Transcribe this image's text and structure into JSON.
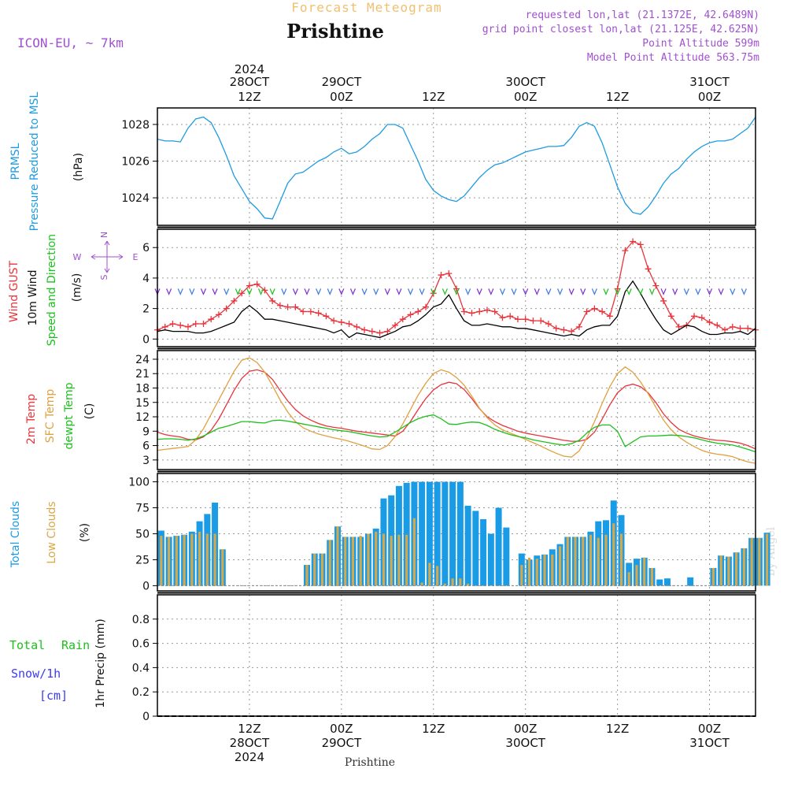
{
  "header": {
    "forecast_title": "Forecast Meteogram",
    "location": "Prishtine",
    "model": "ICON-EU, ~ 7km",
    "requested": "requested lon,lat (21.1372E, 42.6489N)",
    "grid_point": "grid point closest lon,lat (21.125E, 42.625N)",
    "point_altitude": "Point Altitude 599m",
    "model_altitude": "Model Point Altitude 563.75m",
    "footer_location": "Prishtine",
    "credit": "by Angel"
  },
  "colors": {
    "pressure": "#1e9be0",
    "gust": "#e8343c",
    "wind": "#000000",
    "direction": "#1cc01c",
    "temp2m": "#e8343c",
    "sfc_temp": "#e0a040",
    "dewpoint": "#1cc01c",
    "total_clouds": "#1a9be6",
    "low_clouds": "#d8a848",
    "arrows": "#7b2fd6",
    "title_gold": "#f0c070",
    "header_purple": "#a050d0",
    "rain": "#1cc01c",
    "snow": "#3b3bf0"
  },
  "time_axis": {
    "top_labels": [
      {
        "line1": "2024",
        "line2": "28OCT",
        "line3": "12Z",
        "h": 12
      },
      {
        "line1": "",
        "line2": "29OCT",
        "line3": "00Z",
        "h": 24
      },
      {
        "line1": "",
        "line2": "",
        "line3": "12Z",
        "h": 36
      },
      {
        "line1": "",
        "line2": "30OCT",
        "line3": "00Z",
        "h": 48
      },
      {
        "line1": "",
        "line2": "",
        "line3": "12Z",
        "h": 60
      },
      {
        "line1": "",
        "line2": "31OCT",
        "line3": "00Z",
        "h": 72
      }
    ],
    "bottom_labels": [
      {
        "line1": "12Z",
        "line2": "28OCT",
        "line3": "2024",
        "h": 12
      },
      {
        "line1": "00Z",
        "line2": "29OCT",
        "line3": "",
        "h": 24
      },
      {
        "line1": "12Z",
        "line2": "",
        "line3": "",
        "h": 36
      },
      {
        "line1": "00Z",
        "line2": "30OCT",
        "line3": "",
        "h": 48
      },
      {
        "line1": "12Z",
        "line2": "",
        "line3": "",
        "h": 60
      },
      {
        "line1": "00Z",
        "line2": "31OCT",
        "line3": "",
        "h": 72
      }
    ]
  },
  "chart_data": [
    {
      "type": "line",
      "panel": "pressure",
      "ylabel_lines": [
        "PRMSL",
        "Pressure Reduced to MSL"
      ],
      "unit": "(hPa)",
      "yticks": [
        1024,
        1026,
        1028
      ],
      "ylim": [
        1022.5,
        1028.9
      ],
      "x_start_hour": 0,
      "x_step_hours": 1,
      "series": [
        {
          "name": "PRMSL",
          "values": [
            1027.2,
            1027.1,
            1027.1,
            1027.05,
            1027.8,
            1028.3,
            1028.4,
            1028.1,
            1027.3,
            1026.3,
            1025.2,
            1024.5,
            1023.8,
            1023.4,
            1022.9,
            1022.85,
            1023.8,
            1024.8,
            1025.3,
            1025.4,
            1025.7,
            1026.0,
            1026.2,
            1026.5,
            1026.7,
            1026.4,
            1026.5,
            1026.8,
            1027.2,
            1027.5,
            1028.0,
            1028.0,
            1027.8,
            1026.9,
            1026.0,
            1025.0,
            1024.4,
            1024.1,
            1023.9,
            1023.8,
            1024.1,
            1024.6,
            1025.1,
            1025.5,
            1025.8,
            1025.9,
            1026.1,
            1026.3,
            1026.5,
            1026.6,
            1026.7,
            1026.8,
            1026.8,
            1026.85,
            1027.3,
            1027.9,
            1028.1,
            1027.9,
            1027.0,
            1025.8,
            1024.6,
            1023.7,
            1023.2,
            1023.1,
            1023.5,
            1024.1,
            1024.8,
            1025.3,
            1025.6,
            1026.1,
            1026.5,
            1026.8,
            1027.0,
            1027.1,
            1027.1,
            1027.2,
            1027.5,
            1027.8,
            1028.4
          ]
        }
      ]
    },
    {
      "type": "line",
      "panel": "wind",
      "ylabel_lines": [
        "Wind GUST",
        "10m Wind",
        "Speed and Direction"
      ],
      "unit": "(m/s)",
      "compass": {
        "n": "N",
        "s": "S",
        "w": "W",
        "e": "E"
      },
      "yticks": [
        0,
        2,
        4,
        6
      ],
      "ylim": [
        -0.5,
        7.2
      ],
      "x_start_hour": 0,
      "x_step_hours": 1,
      "series": [
        {
          "name": "Wind GUST",
          "values": [
            0.6,
            0.8,
            1.0,
            0.9,
            0.8,
            1.0,
            1.0,
            1.3,
            1.6,
            2.0,
            2.5,
            3.0,
            3.5,
            3.6,
            3.2,
            2.5,
            2.2,
            2.1,
            2.1,
            1.8,
            1.8,
            1.7,
            1.5,
            1.2,
            1.1,
            1.0,
            0.8,
            0.6,
            0.5,
            0.4,
            0.5,
            0.9,
            1.3,
            1.6,
            1.8,
            2.1,
            3.0,
            4.2,
            4.3,
            3.3,
            1.8,
            1.7,
            1.8,
            1.9,
            1.8,
            1.4,
            1.5,
            1.3,
            1.3,
            1.2,
            1.2,
            1.0,
            0.7,
            0.6,
            0.5,
            0.8,
            1.8,
            2.0,
            1.8,
            1.5,
            3.3,
            5.8,
            6.4,
            6.2,
            4.6,
            3.5,
            2.5,
            1.5,
            0.8,
            0.9,
            1.5,
            1.4,
            1.1,
            0.9,
            0.6,
            0.8,
            0.7,
            0.7,
            0.6
          ]
        },
        {
          "name": "10m Wind",
          "values": [
            0.5,
            0.6,
            0.5,
            0.5,
            0.5,
            0.4,
            0.4,
            0.5,
            0.7,
            0.9,
            1.1,
            1.8,
            2.2,
            1.8,
            1.3,
            1.3,
            1.2,
            1.1,
            1.0,
            0.9,
            0.8,
            0.7,
            0.6,
            0.4,
            0.6,
            0.1,
            0.4,
            0.3,
            0.2,
            0.1,
            0.3,
            0.5,
            0.8,
            0.9,
            1.2,
            1.6,
            2.1,
            2.3,
            2.9,
            2.0,
            1.2,
            0.9,
            0.9,
            1.0,
            0.9,
            0.8,
            0.8,
            0.7,
            0.7,
            0.6,
            0.5,
            0.4,
            0.3,
            0.2,
            0.3,
            0.2,
            0.6,
            0.8,
            0.9,
            0.9,
            1.5,
            3.1,
            3.8,
            3.0,
            2.1,
            1.3,
            0.6,
            0.3,
            0.6,
            0.9,
            0.8,
            0.5,
            0.3,
            0.3,
            0.4,
            0.4,
            0.5,
            0.3,
            0.7
          ]
        }
      ]
    },
    {
      "type": "line",
      "panel": "temperature",
      "ylabel_lines": [
        "2m Temp",
        "SFC Temp",
        "dewpt Temp"
      ],
      "unit": "(C)",
      "yticks": [
        3,
        6,
        9,
        12,
        15,
        18,
        21,
        24
      ],
      "ylim": [
        1.0,
        25.8
      ],
      "x_start_hour": 0,
      "x_step_hours": 1,
      "series": [
        {
          "name": "2m Temp",
          "values": [
            8.8,
            8.3,
            8.0,
            7.8,
            7.3,
            7.2,
            7.8,
            9.2,
            11.5,
            14.5,
            17.5,
            20.0,
            21.5,
            21.8,
            21.3,
            19.8,
            17.5,
            15.3,
            13.5,
            12.2,
            11.3,
            10.6,
            10.1,
            9.8,
            9.6,
            9.3,
            9.0,
            8.8,
            8.6,
            8.4,
            8.2,
            8.0,
            9.0,
            11.0,
            13.5,
            15.8,
            17.6,
            18.7,
            19.2,
            18.9,
            17.7,
            15.8,
            13.7,
            12.0,
            11.0,
            10.2,
            9.6,
            9.0,
            8.6,
            8.3,
            8.0,
            7.7,
            7.4,
            7.1,
            6.9,
            6.9,
            7.3,
            8.8,
            11.5,
            14.5,
            17.0,
            18.4,
            18.8,
            18.3,
            17.0,
            15.0,
            12.6,
            10.8,
            9.4,
            8.6,
            8.0,
            7.6,
            7.3,
            7.1,
            7.0,
            6.8,
            6.5,
            6.0,
            5.3
          ]
        },
        {
          "name": "SFC Temp",
          "values": [
            5.0,
            5.2,
            5.4,
            5.6,
            5.8,
            7.2,
            9.5,
            12.5,
            15.5,
            18.5,
            21.5,
            23.8,
            24.3,
            23.3,
            21.3,
            18.5,
            15.5,
            13.0,
            11.0,
            9.7,
            9.0,
            8.4,
            8.0,
            7.6,
            7.3,
            6.9,
            6.4,
            5.9,
            5.3,
            5.2,
            6.0,
            7.9,
            10.5,
            13.5,
            16.5,
            19.0,
            21.0,
            21.8,
            21.3,
            20.2,
            18.6,
            16.3,
            13.8,
            11.8,
            10.3,
            9.3,
            8.6,
            8.0,
            7.3,
            6.6,
            5.9,
            5.1,
            4.4,
            3.8,
            3.6,
            4.9,
            7.6,
            11.0,
            14.8,
            18.3,
            21.0,
            22.4,
            21.3,
            19.3,
            16.8,
            14.0,
            11.3,
            9.3,
            7.8,
            6.7,
            5.8,
            5.0,
            4.5,
            4.2,
            4.0,
            3.7,
            3.1,
            2.6,
            2.3
          ]
        },
        {
          "name": "dewpt Temp",
          "values": [
            7.3,
            7.4,
            7.4,
            7.3,
            7.1,
            7.4,
            8.0,
            8.8,
            9.6,
            10.0,
            10.5,
            11.0,
            11.0,
            10.8,
            10.7,
            11.2,
            11.3,
            11.1,
            10.8,
            10.5,
            10.2,
            9.9,
            9.6,
            9.3,
            9.1,
            8.9,
            8.6,
            8.3,
            8.0,
            7.8,
            7.9,
            8.8,
            9.8,
            10.8,
            11.6,
            12.1,
            12.4,
            11.6,
            10.5,
            10.4,
            10.7,
            10.9,
            10.8,
            10.2,
            9.4,
            8.8,
            8.3,
            7.9,
            7.6,
            7.2,
            6.9,
            6.6,
            6.3,
            6.1,
            6.4,
            7.1,
            8.6,
            9.8,
            10.3,
            10.3,
            9.0,
            5.8,
            6.8,
            7.8,
            8.0,
            8.0,
            8.1,
            8.2,
            8.1,
            7.9,
            7.6,
            7.2,
            6.8,
            6.5,
            6.3,
            6.1,
            5.7,
            5.2,
            4.7
          ]
        }
      ]
    },
    {
      "type": "bar",
      "panel": "clouds",
      "ylabel_lines": [
        "Total Clouds",
        "Low Clouds"
      ],
      "unit": "(%)",
      "yticks": [
        0,
        25,
        50,
        75,
        100
      ],
      "ylim": [
        -5,
        108
      ],
      "x_start_hour": 0,
      "x_step_hours": 1,
      "series": [
        {
          "name": "Total Clouds",
          "values": [
            53,
            47,
            48,
            49,
            52,
            62,
            69,
            80,
            35,
            0,
            0,
            0,
            0,
            0,
            0,
            0,
            0,
            0,
            0,
            20,
            31,
            31,
            44,
            57,
            47,
            47,
            47,
            50,
            55,
            84,
            87,
            96,
            99,
            100,
            100,
            100,
            100,
            100,
            100,
            100,
            77,
            72,
            64,
            50,
            75,
            56,
            0,
            31,
            25,
            29,
            30,
            35,
            40,
            47,
            47,
            47,
            52,
            62,
            63,
            82,
            68,
            22,
            26,
            27,
            17,
            6,
            7,
            0,
            0,
            8,
            0,
            0,
            17,
            29,
            28,
            32,
            36,
            46,
            46,
            51
          ]
        },
        {
          "name": "Low Clouds",
          "values": [
            48,
            47,
            48,
            49,
            50,
            52,
            50,
            50,
            35,
            0,
            0,
            0,
            0,
            0,
            0,
            0,
            0,
            0,
            0,
            20,
            31,
            31,
            44,
            57,
            47,
            47,
            48,
            50,
            52,
            50,
            48,
            49,
            49,
            65,
            3,
            22,
            19,
            2,
            7,
            7,
            2,
            0,
            0,
            0,
            0,
            0,
            0,
            20,
            27,
            26,
            30,
            30,
            38,
            47,
            47,
            47,
            49,
            46,
            49,
            60,
            50,
            13,
            20,
            27,
            17,
            0,
            0,
            0,
            0,
            0,
            0,
            0,
            17,
            29,
            28,
            32,
            36,
            46,
            46,
            50
          ]
        }
      ]
    },
    {
      "type": "line",
      "panel": "precip",
      "ylabel_lines": [
        "1hr Precip (mm)"
      ],
      "left_labels": {
        "total": "Total",
        "rain": "Rain",
        "snow": "Snow/1h",
        "unit": "[cm]"
      },
      "yticks": [
        0,
        0.2,
        0.4,
        0.6,
        0.8
      ],
      "ylim": [
        0,
        1.0
      ],
      "x_start_hour": 0,
      "x_step_hours": 1,
      "series": [
        {
          "name": "Rain",
          "values": [
            0,
            0,
            0,
            0,
            0,
            0,
            0,
            0,
            0,
            0,
            0,
            0,
            0,
            0,
            0,
            0,
            0,
            0,
            0,
            0,
            0,
            0,
            0,
            0,
            0,
            0,
            0,
            0,
            0,
            0,
            0,
            0,
            0,
            0,
            0,
            0,
            0,
            0,
            0,
            0,
            0,
            0,
            0,
            0,
            0,
            0,
            0,
            0,
            0,
            0,
            0,
            0,
            0,
            0,
            0,
            0,
            0,
            0,
            0,
            0,
            0,
            0,
            0,
            0,
            0,
            0,
            0,
            0,
            0,
            0,
            0,
            0,
            0,
            0,
            0,
            0,
            0,
            0,
            0
          ]
        }
      ]
    }
  ]
}
